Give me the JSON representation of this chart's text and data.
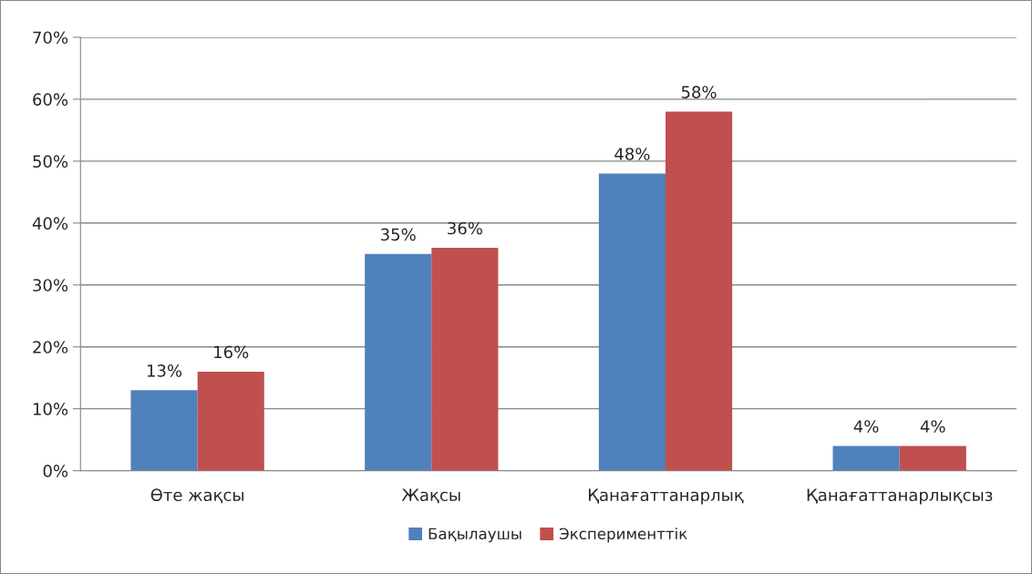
{
  "chart_data": {
    "type": "bar",
    "categories": [
      "Өте жақсы",
      "Жақсы",
      "Қанағаттанарлық",
      "Қанағаттанарлықсыз"
    ],
    "series": [
      {
        "name": "Бақылаушы",
        "color": "#4f81bd",
        "values": [
          13,
          35,
          48,
          4
        ],
        "value_labels": [
          "13%",
          "35%",
          "48%",
          "4%"
        ]
      },
      {
        "name": "Эксперименттік",
        "color": "#c0504d",
        "values": [
          16,
          36,
          58,
          4
        ],
        "value_labels": [
          "16%",
          "36%",
          "58%",
          "4%"
        ]
      }
    ],
    "ylim": [
      0,
      70
    ],
    "yticks": [
      {
        "value": 0,
        "label": "0%"
      },
      {
        "value": 10,
        "label": "10%"
      },
      {
        "value": 20,
        "label": "20%"
      },
      {
        "value": 30,
        "label": "30%"
      },
      {
        "value": 40,
        "label": "40%"
      },
      {
        "value": 50,
        "label": "50%"
      },
      {
        "value": 60,
        "label": "60%"
      },
      {
        "value": 70,
        "label": "70%"
      }
    ],
    "grid": "y",
    "legend": "bottom"
  }
}
